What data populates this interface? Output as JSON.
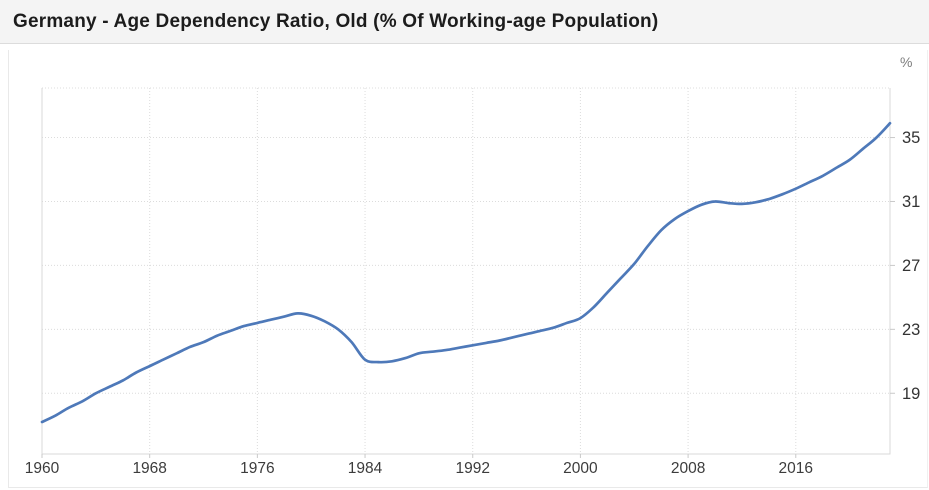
{
  "header": {
    "title": "Germany - Age Dependency Ratio, Old (% Of Working-age Population)"
  },
  "chart_data": {
    "type": "line",
    "title": "Germany - Age Dependency Ratio, Old (% Of Working-age Population)",
    "ylabel": "%",
    "xlabel": "",
    "grid": "dotted",
    "legend_position": "none",
    "xlim": [
      1960,
      2023
    ],
    "ylim": [
      15.2,
      38.1
    ],
    "x_ticks": [
      1960,
      1968,
      1976,
      1984,
      1992,
      2000,
      2008,
      2016
    ],
    "y_ticks": [
      19,
      23,
      27,
      31,
      35
    ],
    "x": [
      1960,
      1961,
      1962,
      1963,
      1964,
      1965,
      1966,
      1967,
      1968,
      1969,
      1970,
      1971,
      1972,
      1973,
      1974,
      1975,
      1976,
      1977,
      1978,
      1979,
      1980,
      1981,
      1982,
      1983,
      1984,
      1985,
      1986,
      1987,
      1988,
      1989,
      1990,
      1991,
      1992,
      1993,
      1994,
      1995,
      1996,
      1997,
      1998,
      1999,
      2000,
      2001,
      2002,
      2003,
      2004,
      2005,
      2006,
      2007,
      2008,
      2009,
      2010,
      2011,
      2012,
      2013,
      2014,
      2015,
      2016,
      2017,
      2018,
      2019,
      2020,
      2021,
      2022,
      2023
    ],
    "series": [
      {
        "name": "Age dependency ratio, old (% of working-age population)",
        "color": "#4e79b9",
        "values": [
          17.2,
          17.6,
          18.1,
          18.5,
          19.0,
          19.4,
          19.8,
          20.3,
          20.7,
          21.1,
          21.5,
          21.9,
          22.2,
          22.6,
          22.9,
          23.2,
          23.4,
          23.6,
          23.8,
          24.0,
          23.85,
          23.5,
          23.0,
          22.2,
          21.1,
          20.95,
          21.0,
          21.2,
          21.5,
          21.6,
          21.7,
          21.85,
          22.0,
          22.15,
          22.3,
          22.5,
          22.7,
          22.9,
          23.1,
          23.4,
          23.7,
          24.4,
          25.3,
          26.2,
          27.1,
          28.2,
          29.2,
          29.9,
          30.4,
          30.8,
          31.0,
          30.9,
          30.85,
          30.95,
          31.15,
          31.45,
          31.8,
          32.2,
          32.6,
          33.1,
          33.6,
          34.3,
          35.0,
          35.9
        ]
      }
    ]
  },
  "colors": {
    "line": "#4e79b9",
    "titlebar_bg": "#f4f4f4",
    "titlebar_border": "#dcdcdc",
    "panel_border": "#e9e9e9",
    "gridline": "#dcdcdc",
    "plot_border": "#d9d9d9",
    "tick": "#c9c9c9",
    "x_label": "#3c3c3c",
    "y_label": "#333333",
    "unit_label": "#7d7d7d"
  }
}
